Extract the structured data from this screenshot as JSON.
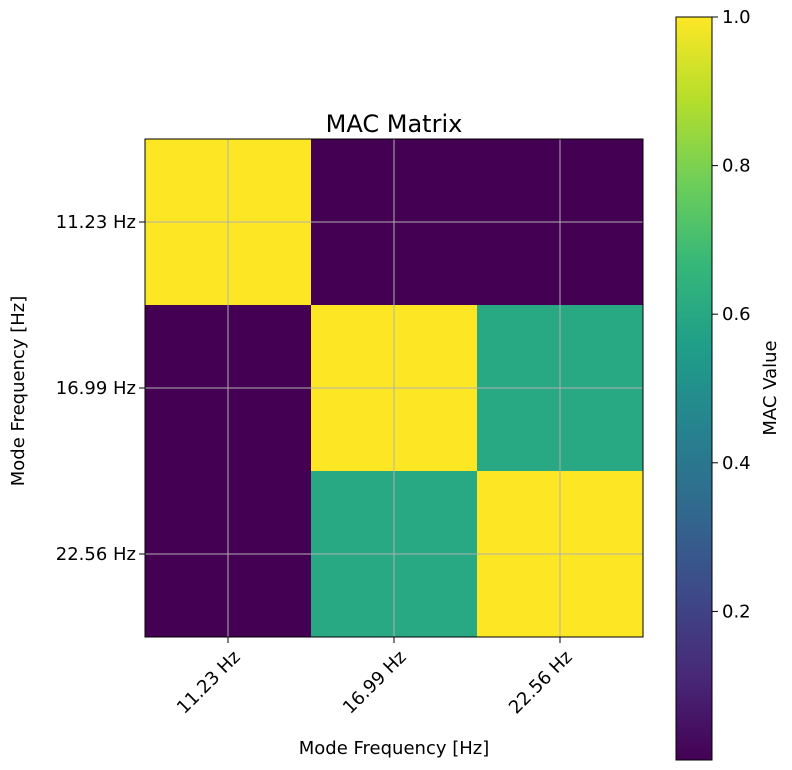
{
  "chart_data": {
    "type": "heatmap",
    "title": "MAC Matrix",
    "xlabel": "Mode Frequency [Hz]",
    "ylabel": "Mode Frequency [Hz]",
    "x_categories": [
      "11.23 Hz",
      "16.99 Hz",
      "22.56 Hz"
    ],
    "y_categories": [
      "11.23 Hz",
      "16.99 Hz",
      "22.56 Hz"
    ],
    "values": [
      [
        1.0,
        0.0,
        0.0
      ],
      [
        0.0,
        1.0,
        0.6
      ],
      [
        0.0,
        0.6,
        1.0
      ]
    ],
    "colormap": "viridis",
    "grid": true,
    "colorbar": {
      "label": "MAC Value",
      "range": [
        0.0,
        1.0
      ],
      "ticks": [
        "0.2",
        "0.4",
        "0.6",
        "0.8",
        "1.0"
      ]
    },
    "colors": {
      "viridis_stops": [
        "#440154",
        "#482878",
        "#3e4989",
        "#31688e",
        "#26828e",
        "#1f9e89",
        "#35b779",
        "#6ece58",
        "#b5de2b",
        "#fde725"
      ]
    }
  }
}
